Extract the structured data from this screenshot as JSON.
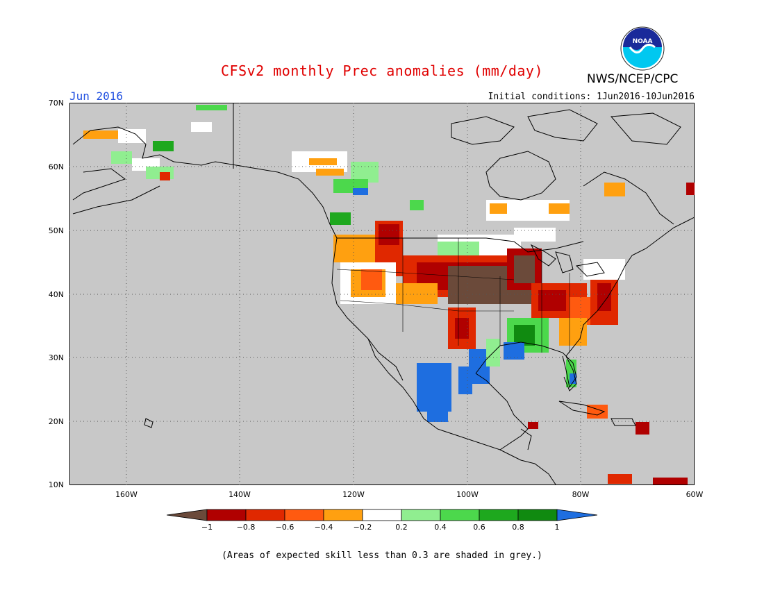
{
  "title": "CFSv2 monthly Prec anomalies (mm/day)",
  "valid_month": "Jun 2016",
  "initial_conditions": "Initial conditions: 1Jun2016-10Jun2016",
  "agency": "NWS/NCEP/CPC",
  "logo_text": "NOAA",
  "footnote": "(Areas of expected skill less than 0.3 are shaded in grey.)",
  "map": {
    "lon_range": [
      -170,
      -60
    ],
    "lat_range": [
      10,
      70
    ],
    "lat_labels": [
      "70N",
      "60N",
      "50N",
      "40N",
      "30N",
      "20N",
      "10N"
    ],
    "lon_labels": [
      "160W",
      "140W",
      "120W",
      "100W",
      "80W",
      "60W"
    ],
    "background_color": "#c8c8c8",
    "colorbar": {
      "labels": [
        "−1",
        "−0.8",
        "−0.6",
        "−0.4",
        "−0.2",
        "0.2",
        "0.4",
        "0.6",
        "0.8",
        "1"
      ],
      "colors": [
        "#6b4a3a",
        "#b00000",
        "#e02800",
        "#ff5a10",
        "#ffa010",
        "#ffffff",
        "#90ee90",
        "#4cd84c",
        "#1ea81e",
        "#108a10",
        "#1e6ee0"
      ]
    }
  }
}
